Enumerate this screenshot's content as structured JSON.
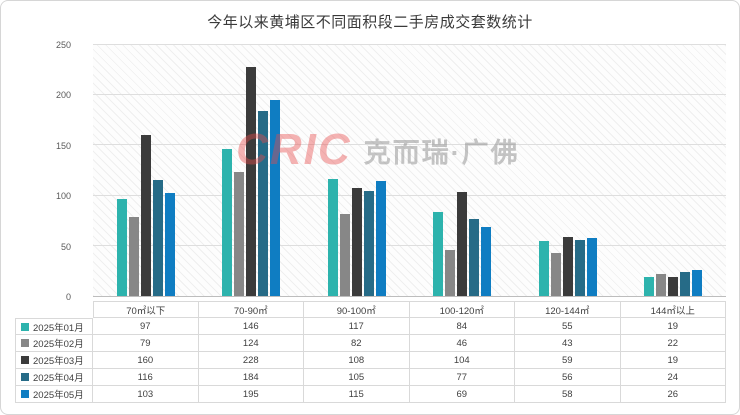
{
  "title": "今年以来黄埔区不同面积段二手房成交套数统计",
  "watermark": {
    "logo_text": "CRIC",
    "brand_text": "克而瑞·广佛"
  },
  "chart_data": {
    "type": "bar",
    "title": "今年以来黄埔区不同面积段二手房成交套数统计",
    "categories": [
      "70㎡以下",
      "70-90㎡",
      "90-100㎡",
      "100-120㎡",
      "120-144㎡",
      "144㎡以上"
    ],
    "series": [
      {
        "name": "2025年01月",
        "color": "#2db3ad",
        "values": [
          97,
          146,
          117,
          84,
          55,
          19
        ]
      },
      {
        "name": "2025年02月",
        "color": "#878787",
        "values": [
          79,
          124,
          82,
          46,
          43,
          22
        ]
      },
      {
        "name": "2025年03月",
        "color": "#3b3b3b",
        "values": [
          160,
          228,
          108,
          104,
          59,
          19
        ]
      },
      {
        "name": "2025年04月",
        "color": "#266b87",
        "values": [
          116,
          184,
          105,
          77,
          56,
          24
        ]
      },
      {
        "name": "2025年05月",
        "color": "#0f7dc2",
        "values": [
          103,
          195,
          115,
          69,
          58,
          26
        ]
      }
    ],
    "ylim": [
      0,
      250
    ],
    "yticks": [
      0,
      50,
      100,
      150,
      200,
      250
    ],
    "grid": true,
    "legend_position": "left-of-data-table",
    "data_table_shown": true
  }
}
